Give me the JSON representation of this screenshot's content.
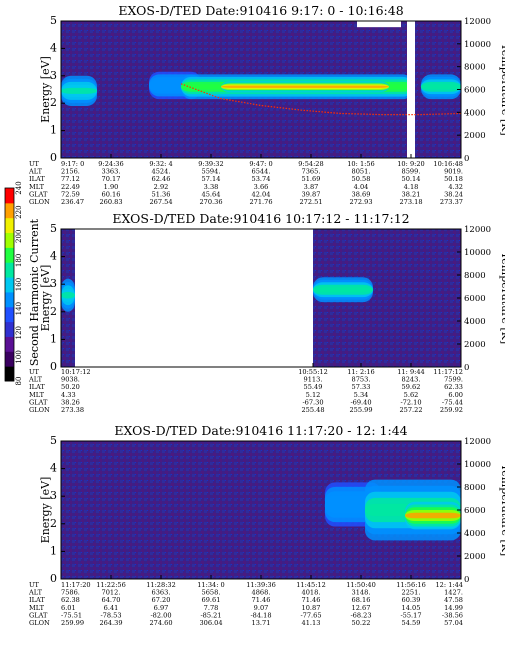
{
  "colors": {
    "background": "#3a1f86",
    "colorbar": [
      "#000000",
      "#3a0060",
      "#5a1094",
      "#3030d0",
      "#2050ff",
      "#0090ff",
      "#00c8f0",
      "#00e8a0",
      "#20ff40",
      "#a0ff00",
      "#f0f000",
      "#ffa000",
      "#ff0000"
    ],
    "line": "#ff3000"
  },
  "colorbar": {
    "label": "Second Harmonic Current",
    "ticks": [
      "80",
      "100",
      "120",
      "140",
      "160",
      "180",
      "200",
      "220",
      "240"
    ],
    "range": [
      80,
      240
    ]
  },
  "chart_data": [
    {
      "type": "heatmap",
      "title": "EXOS-D/TED   Date:910416   9:17: 0 - 10:16:48",
      "ylabel": "Energy [eV]",
      "y2label": "Temperature [K]",
      "ylim": [
        0,
        5
      ],
      "y2lim": [
        0,
        12000
      ],
      "yticks": [
        "0",
        "1",
        "2",
        "3",
        "4",
        "5"
      ],
      "y2ticks": [
        "0",
        "2000",
        "4000",
        "6000",
        "8000",
        "10000",
        "12000"
      ],
      "ephemeris_labels": [
        "UT",
        "ALT",
        "ILAT",
        "MLT",
        "GLAT",
        "GLON"
      ],
      "ephemeris": [
        [
          "9:17: 0",
          "2156.",
          "77.12",
          "22.49",
          "72.59",
          "236.47"
        ],
        [
          "9:24:36",
          "3363.",
          "70.17",
          "1.90",
          "60.16",
          "260.83"
        ],
        [
          "9:32: 4",
          "4524.",
          "62.46",
          "2.92",
          "51.36",
          "267.54"
        ],
        [
          "9:39:32",
          "5594.",
          "57.14",
          "3.38",
          "45.64",
          "270.36"
        ],
        [
          "9:47: 0",
          "6544.",
          "53.74",
          "3.66",
          "42.04",
          "271.76"
        ],
        [
          "9:54:28",
          "7365.",
          "51.69",
          "3.87",
          "39.87",
          "272.51"
        ],
        [
          "10: 1:56",
          "8051.",
          "50.58",
          "4.04",
          "38.69",
          "272.93"
        ],
        [
          "10: 9:20",
          "8599.",
          "50.14",
          "4.18",
          "38.21",
          "273.18"
        ],
        [
          "10:16:48",
          "9019.",
          "50.18",
          "4.32",
          "38.24",
          "273.37"
        ]
      ],
      "blobs": [
        {
          "t0": 0.0,
          "t1": 0.09,
          "e": 2.45,
          "w": 0.55,
          "level": 0.55
        },
        {
          "t0": 0.22,
          "t1": 0.35,
          "e": 2.65,
          "w": 0.5,
          "level": 0.45
        },
        {
          "t0": 0.3,
          "t1": 0.88,
          "e": 2.6,
          "w": 0.45,
          "level": 0.7
        },
        {
          "t0": 0.4,
          "t1": 0.82,
          "e": 2.6,
          "w": 0.2,
          "level": 0.95
        },
        {
          "t0": 0.9,
          "t1": 1.0,
          "e": 2.6,
          "w": 0.45,
          "level": 0.6
        }
      ],
      "temperature": [
        {
          "t": 0.3,
          "T": 6500
        },
        {
          "t": 0.4,
          "T": 5200
        },
        {
          "t": 0.5,
          "T": 4600
        },
        {
          "t": 0.6,
          "T": 4200
        },
        {
          "t": 0.7,
          "T": 3900
        },
        {
          "t": 0.8,
          "T": 3800
        },
        {
          "t": 0.9,
          "T": 3800
        },
        {
          "t": 1.0,
          "T": 3900
        }
      ],
      "gaps": [
        {
          "t0": 0.865,
          "t1": 0.885
        }
      ],
      "saturated": [
        {
          "t0": 0.74,
          "t1": 0.85,
          "e": 4.9,
          "w": 0.25
        }
      ]
    },
    {
      "type": "heatmap",
      "title": "EXOS-D/TED   Date:910416   10:17:12 - 11:17:12",
      "ylabel": "Energy [eV]",
      "y2label": "Temperature [K]",
      "ylim": [
        0,
        5
      ],
      "y2lim": [
        0,
        12000
      ],
      "yticks": [
        "0",
        "1",
        "2",
        "3",
        "4",
        "5"
      ],
      "y2ticks": [
        "0",
        "2000",
        "4000",
        "6000",
        "8000",
        "10000",
        "12000"
      ],
      "ephemeris_labels": [
        "UT",
        "ALT",
        "ILAT",
        "MLT",
        "GLAT",
        "GLON"
      ],
      "ephemeris": [
        [
          "10:17:12",
          "9038.",
          "50.20",
          "4.33",
          "38.26",
          "273.38"
        ],
        [
          "10:55:12",
          "9113.",
          "55.49",
          "5.12",
          "-67.30",
          "255.48"
        ],
        [
          "11: 2:16",
          "8753.",
          "57.33",
          "5.34",
          "-69.40",
          "255.99"
        ],
        [
          "11: 9:44",
          "8243.",
          "59.62",
          "5.62",
          "-72.10",
          "257.22"
        ],
        [
          "11:17:12",
          "7599.",
          "62.33",
          "6.00",
          "-75.44",
          "259.92"
        ]
      ],
      "ephemeris_positions": [
        0.0,
        0.63,
        0.75,
        0.875,
        1.0
      ],
      "blobs": [
        {
          "t0": 0.0,
          "t1": 0.035,
          "e": 2.6,
          "w": 0.6,
          "level": 0.55
        },
        {
          "t0": 0.63,
          "t1": 0.78,
          "e": 2.8,
          "w": 0.45,
          "level": 0.6
        }
      ],
      "temperature": [],
      "gaps": [
        {
          "t0": 0.035,
          "t1": 0.63
        }
      ],
      "saturated": []
    },
    {
      "type": "heatmap",
      "title": "EXOS-D/TED   Date:910416   11:17:20 - 12: 1:44",
      "ylabel": "Energy [eV]",
      "y2label": "Temperature [K]",
      "ylim": [
        0,
        5
      ],
      "y2lim": [
        0,
        12000
      ],
      "yticks": [
        "0",
        "1",
        "2",
        "3",
        "4",
        "5"
      ],
      "y2ticks": [
        "0",
        "2000",
        "4000",
        "6000",
        "8000",
        "10000",
        "12000"
      ],
      "ephemeris_labels": [
        "UT",
        "ALT",
        "ILAT",
        "MLT",
        "GLAT",
        "GLON"
      ],
      "ephemeris": [
        [
          "11:17:20",
          "7586.",
          "62.38",
          "6.01",
          "-75.51",
          "259.99"
        ],
        [
          "11:22:56",
          "7012.",
          "64.70",
          "6.41",
          "-78.53",
          "264.39"
        ],
        [
          "11:28:32",
          "6363.",
          "67.20",
          "6.97",
          "-82.00",
          "274.60"
        ],
        [
          "11:34: 0",
          "5658.",
          "69.61",
          "7.78",
          "-85.21",
          "306.04"
        ],
        [
          "11:39:36",
          "4868.",
          "71.46",
          "9.07",
          "-84.18",
          "13.71"
        ],
        [
          "11:45:12",
          "4018.",
          "71.46",
          "10.87",
          "-77.65",
          "41.13"
        ],
        [
          "11:50:40",
          "3148.",
          "68.16",
          "12.67",
          "-68.23",
          "50.22"
        ],
        [
          "11:56:16",
          "2251.",
          "60.39",
          "14.05",
          "-55.17",
          "54.59"
        ],
        [
          "12: 1:44",
          "1427.",
          "47.58",
          "14.99",
          "-38.56",
          "57.04"
        ]
      ],
      "blobs": [
        {
          "t0": 0.66,
          "t1": 0.8,
          "e": 2.7,
          "w": 0.8,
          "level": 0.45
        },
        {
          "t0": 0.76,
          "t1": 1.0,
          "e": 2.5,
          "w": 1.1,
          "level": 0.6
        },
        {
          "t0": 0.86,
          "t1": 1.0,
          "e": 2.3,
          "w": 0.5,
          "level": 0.9
        }
      ],
      "temperature": [],
      "gaps": [],
      "saturated": []
    }
  ]
}
